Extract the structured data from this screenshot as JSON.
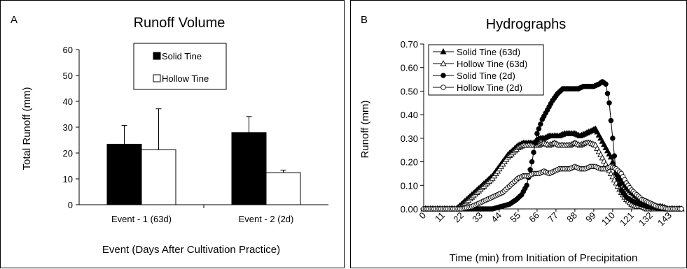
{
  "chart_data": [
    {
      "type": "bar",
      "panel_letter": "A",
      "title": "Runoff Volume",
      "xlabel": "Event (Days After Cultivation Practice)",
      "ylabel": "Total Runoff (mm)",
      "ylim": [
        0,
        60
      ],
      "yticks": [
        "0",
        "10",
        "20",
        "30",
        "40",
        "50",
        "60"
      ],
      "categories": [
        "Event - 1 (63d)",
        "Event - 2 (2d)"
      ],
      "series": [
        {
          "name": "Solid Tine",
          "values": [
            23.4,
            27.9
          ],
          "error": [
            7.3,
            6.2
          ],
          "color": "#000000"
        },
        {
          "name": "Hollow Tine",
          "values": [
            21.3,
            12.4
          ],
          "error": [
            15.8,
            1.0
          ],
          "color": "#ffffff"
        }
      ],
      "legend_position": "top-right",
      "grid": false
    },
    {
      "type": "line",
      "panel_letter": "B",
      "title": "Hydrographs",
      "xlabel": "Time (min) from Initiation of Precipitation",
      "ylabel": "Runoff (mm)",
      "xlim": [
        0,
        150
      ],
      "ylim": [
        0,
        0.7
      ],
      "xticks": [
        "0",
        "11",
        "22",
        "33",
        "44",
        "55",
        "66",
        "77",
        "88",
        "99",
        "110",
        "121",
        "132",
        "143"
      ],
      "yticks": [
        "0.00",
        "0.10",
        "0.20",
        "0.30",
        "0.40",
        "0.50",
        "0.60",
        "0.70"
      ],
      "legend_position": "top-left",
      "grid": false,
      "series": [
        {
          "name": "Solid Tine (63d)",
          "marker": "triangle-filled",
          "points": [
            [
              0,
              0
            ],
            [
              19,
              0
            ],
            [
              22,
              0.02
            ],
            [
              25,
              0.04
            ],
            [
              28,
              0.06
            ],
            [
              31,
              0.08
            ],
            [
              34,
              0.1
            ],
            [
              37,
              0.12
            ],
            [
              40,
              0.14
            ],
            [
              43,
              0.17
            ],
            [
              46,
              0.2
            ],
            [
              49,
              0.23
            ],
            [
              52,
              0.25
            ],
            [
              55,
              0.27
            ],
            [
              58,
              0.28
            ],
            [
              61,
              0.28
            ],
            [
              64,
              0.28
            ],
            [
              67,
              0.3
            ],
            [
              70,
              0.3
            ],
            [
              73,
              0.31
            ],
            [
              76,
              0.31
            ],
            [
              79,
              0.31
            ],
            [
              82,
              0.32
            ],
            [
              85,
              0.32
            ],
            [
              88,
              0.32
            ],
            [
              91,
              0.31
            ],
            [
              94,
              0.32
            ],
            [
              97,
              0.33
            ],
            [
              100,
              0.34
            ],
            [
              103,
              0.3
            ],
            [
              106,
              0.26
            ],
            [
              109,
              0.22
            ],
            [
              112,
              0.16
            ],
            [
              115,
              0.12
            ],
            [
              118,
              0.09
            ],
            [
              121,
              0.07
            ],
            [
              124,
              0.05
            ],
            [
              127,
              0.04
            ],
            [
              130,
              0.03
            ],
            [
              133,
              0.02
            ],
            [
              136,
              0.01
            ],
            [
              139,
              0.01
            ],
            [
              142,
              0
            ],
            [
              150,
              0
            ]
          ]
        },
        {
          "name": "Hollow Tine (63d)",
          "marker": "triangle-open",
          "points": [
            [
              0,
              0
            ],
            [
              19,
              0
            ],
            [
              22,
              0.01
            ],
            [
              25,
              0.03
            ],
            [
              28,
              0.05
            ],
            [
              31,
              0.07
            ],
            [
              34,
              0.09
            ],
            [
              37,
              0.11
            ],
            [
              40,
              0.13
            ],
            [
              43,
              0.16
            ],
            [
              46,
              0.19
            ],
            [
              49,
              0.22
            ],
            [
              52,
              0.24
            ],
            [
              55,
              0.26
            ],
            [
              58,
              0.27
            ],
            [
              61,
              0.27
            ],
            [
              64,
              0.27
            ],
            [
              67,
              0.27
            ],
            [
              70,
              0.28
            ],
            [
              73,
              0.27
            ],
            [
              76,
              0.28
            ],
            [
              79,
              0.27
            ],
            [
              82,
              0.27
            ],
            [
              85,
              0.27
            ],
            [
              88,
              0.28
            ],
            [
              91,
              0.27
            ],
            [
              94,
              0.28
            ],
            [
              97,
              0.28
            ],
            [
              100,
              0.27
            ],
            [
              103,
              0.23
            ],
            [
              106,
              0.19
            ],
            [
              109,
              0.15
            ],
            [
              112,
              0.11
            ],
            [
              115,
              0.07
            ],
            [
              118,
              0.04
            ],
            [
              121,
              0.02
            ],
            [
              124,
              0.01
            ],
            [
              127,
              0.01
            ],
            [
              130,
              0
            ],
            [
              150,
              0
            ]
          ]
        },
        {
          "name": "Solid Tine (2d)",
          "marker": "circle-filled",
          "points": [
            [
              0,
              0
            ],
            [
              40,
              0
            ],
            [
              45,
              0.01
            ],
            [
              50,
              0.02
            ],
            [
              54,
              0.04
            ],
            [
              57,
              0.06
            ],
            [
              60,
              0.1
            ],
            [
              63,
              0.2
            ],
            [
              66,
              0.32
            ],
            [
              69,
              0.38
            ],
            [
              72,
              0.42
            ],
            [
              75,
              0.46
            ],
            [
              78,
              0.49
            ],
            [
              81,
              0.51
            ],
            [
              84,
              0.51
            ],
            [
              87,
              0.51
            ],
            [
              90,
              0.51
            ],
            [
              93,
              0.52
            ],
            [
              96,
              0.52
            ],
            [
              99,
              0.52
            ],
            [
              102,
              0.53
            ],
            [
              104,
              0.54
            ],
            [
              106,
              0.53
            ],
            [
              108,
              0.45
            ],
            [
              110,
              0.3
            ],
            [
              112,
              0.15
            ],
            [
              115,
              0.08
            ],
            [
              118,
              0.05
            ],
            [
              122,
              0.03
            ],
            [
              126,
              0.02
            ],
            [
              130,
              0.01
            ],
            [
              135,
              0.005
            ],
            [
              140,
              0
            ],
            [
              150,
              0
            ]
          ]
        },
        {
          "name": "Hollow Tine (2d)",
          "marker": "circle-open",
          "points": [
            [
              0,
              0
            ],
            [
              22,
              0
            ],
            [
              25,
              0.005
            ],
            [
              28,
              0.01
            ],
            [
              31,
              0.02
            ],
            [
              34,
              0.03
            ],
            [
              37,
              0.04
            ],
            [
              40,
              0.05
            ],
            [
              43,
              0.06
            ],
            [
              46,
              0.07
            ],
            [
              49,
              0.09
            ],
            [
              52,
              0.11
            ],
            [
              55,
              0.13
            ],
            [
              58,
              0.14
            ],
            [
              61,
              0.14
            ],
            [
              64,
              0.15
            ],
            [
              67,
              0.15
            ],
            [
              70,
              0.16
            ],
            [
              73,
              0.15
            ],
            [
              76,
              0.16
            ],
            [
              79,
              0.17
            ],
            [
              82,
              0.17
            ],
            [
              85,
              0.17
            ],
            [
              88,
              0.18
            ],
            [
              91,
              0.17
            ],
            [
              94,
              0.17
            ],
            [
              97,
              0.18
            ],
            [
              100,
              0.18
            ],
            [
              103,
              0.17
            ],
            [
              106,
              0.17
            ],
            [
              109,
              0.18
            ],
            [
              112,
              0.17
            ],
            [
              115,
              0.15
            ],
            [
              118,
              0.11
            ],
            [
              121,
              0.08
            ],
            [
              124,
              0.06
            ],
            [
              127,
              0.04
            ],
            [
              130,
              0.03
            ],
            [
              133,
              0.02
            ],
            [
              136,
              0.01
            ],
            [
              139,
              0.005
            ],
            [
              142,
              0
            ],
            [
              150,
              0
            ]
          ]
        }
      ]
    }
  ]
}
